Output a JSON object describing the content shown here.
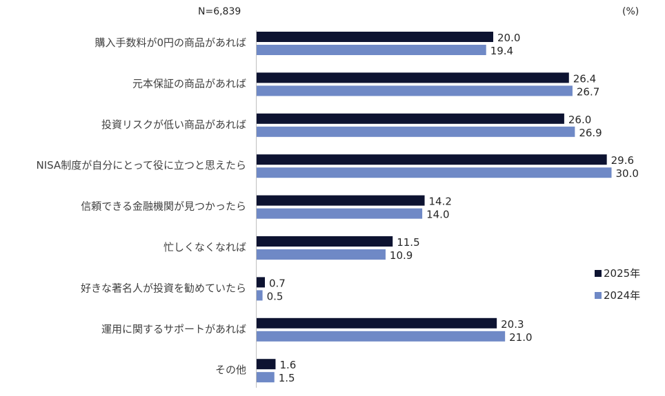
{
  "header": {
    "sample_size": "N=6,839",
    "unit": "(%)"
  },
  "chart_data": {
    "type": "bar",
    "orientation": "horizontal",
    "categories": [
      "購入手数料が0円の商品があれば",
      "元本保証の商品があれば",
      "投資リスクが低い商品があれば",
      "NISA制度が自分にとって役に立つと思えたら",
      "信頼できる金融機関が見つかったら",
      "忙しくなくなれば",
      "好きな著名人が投資を勧めていたら",
      "運用に関するサポートがあれば",
      "その他"
    ],
    "series": [
      {
        "name": "2025年",
        "color": "#0d1331",
        "values": [
          20.0,
          26.4,
          26.0,
          29.6,
          14.2,
          11.5,
          0.7,
          20.3,
          1.6
        ]
      },
      {
        "name": "2024年",
        "color": "#6f89c6",
        "values": [
          19.4,
          26.7,
          26.9,
          30.0,
          14.0,
          10.9,
          0.5,
          21.0,
          1.5
        ]
      }
    ],
    "xlim": [
      0,
      30
    ],
    "grid": false,
    "legend_position": "right"
  }
}
